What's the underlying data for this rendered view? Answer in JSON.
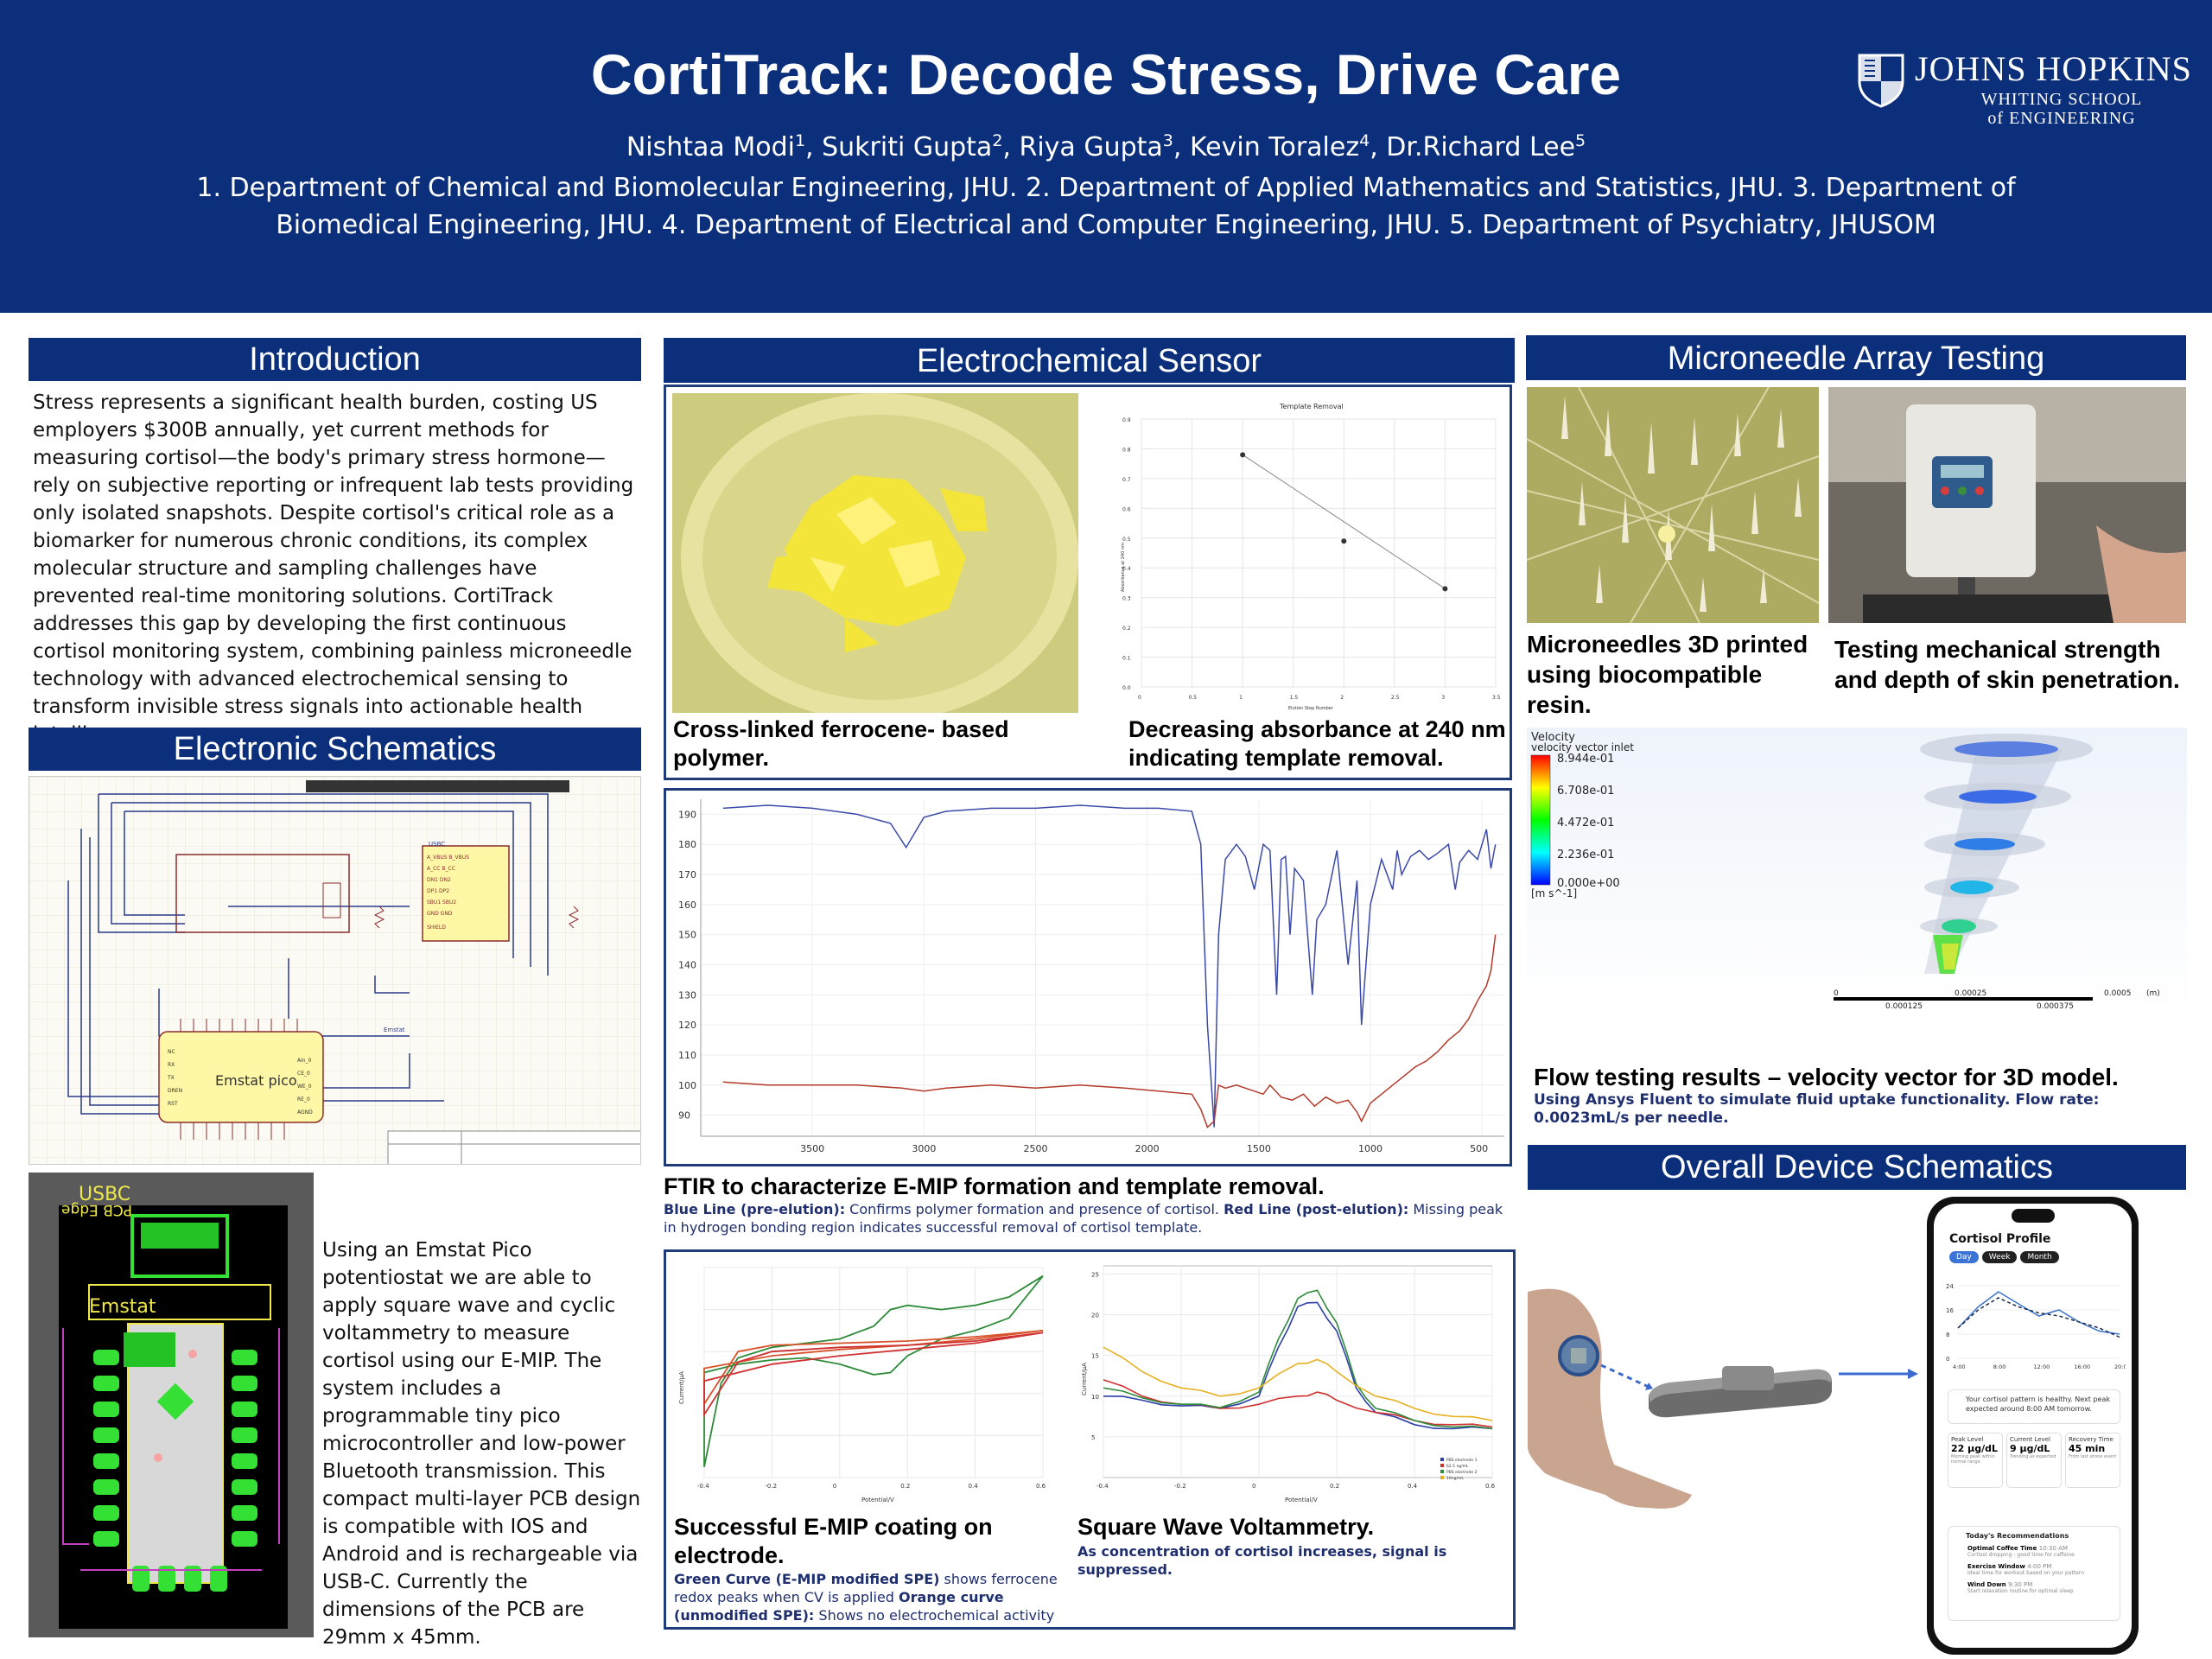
{
  "header": {
    "title": "CortiTrack: Decode Stress, Drive Care",
    "authors": [
      {
        "name": "Nishtaa Modi",
        "sup": "1"
      },
      {
        "name": "Sukriti Gupta",
        "sup": "2"
      },
      {
        "name": "Riya Gupta",
        "sup": "3"
      },
      {
        "name": "Kevin Toralez",
        "sup": "4"
      },
      {
        "name": "Dr.Richard Lee",
        "sup": "5"
      }
    ],
    "affiliations": "1. Department of Chemical and Biomolecular Engineering, JHU. 2. Department of Applied Mathematics and Statistics, JHU. 3. Department of Biomedical Engineering, JHU. 4. Department of Electrical and Computer Engineering, JHU. 5. Department of Psychiatry, JHUSOM",
    "logo": {
      "line1": "JOHNS HOPKINS",
      "line2": "WHITING SCHOOL",
      "line3": "of ENGINEERING"
    }
  },
  "introduction": {
    "heading": "Introduction",
    "text": "Stress represents a significant health burden, costing US employers $300B annually, yet current methods for measuring cortisol—the body's primary stress hormone—rely on subjective reporting or infrequent lab tests providing only isolated snapshots. Despite cortisol's critical role as a biomarker for numerous chronic conditions, its complex molecular structure and sampling challenges have prevented real-time monitoring solutions. CortiTrack addresses this gap by developing the first continuous cortisol monitoring system, combining painless microneedle technology with advanced electrochemical sensing to transform invisible stress signals into actionable health intelligence."
  },
  "schematics": {
    "heading": "Electronic Schematics",
    "usbc_label": "USBC",
    "board_label": "Emstat",
    "pico_label": "Emstat pico",
    "pcb_silk": "USBC",
    "pcb_edge": "PCB Edge",
    "pcb_emstat": "Emstat",
    "text": "Using an Emstat Pico potentiostat we are able to apply square wave and cyclic voltammetry to measure cortisol using our E-MIP. The system includes a programmable tiny pico microcontroller and low-power Bluetooth transmission. This compact multi-layer PCB design is compatible with IOS and Android and is rechargeable via USB-C. Currently the dimensions of the PCB are 29mm x 45mm."
  },
  "sensor": {
    "heading": "Electrochemical Sensor",
    "photo_caption": "Cross-linked ferrocene- based polymer.",
    "abs_caption": "Decreasing absorbance at 240 nm indicating template removal.",
    "abs_title": "Template Removal",
    "ftir_caption": "FTIR to characterize E-MIP formation and template removal.",
    "ftir_note_b1": "Blue Line (pre-elution):",
    "ftir_note_t1": " Confirms polymer formation and presence of cortisol. ",
    "ftir_note_b2": "Red Line (post-elution):",
    "ftir_note_t2": " Missing peak in hydrogen bonding region indicates successful removal of cortisol template.",
    "cv_caption": "Successful E-MIP coating on electrode.",
    "cv_note_b1": "Green Curve (E-MIP modified SPE)",
    "cv_note_t1": " shows ferrocene redox peaks when CV is applied ",
    "cv_note_b2": "Orange curve (unmodified SPE):",
    "cv_note_t2": " Shows no electrochemical activity",
    "swv_caption": "Square Wave Voltammetry.",
    "swv_note": "As concentration of cortisol increases, signal is suppressed.",
    "cv_xlabel": "Potential/V",
    "cv_ylabel": "Current/μA",
    "swv_xlabel": "Potential/V",
    "swv_ylabel": "Current/μA",
    "swv_legend": [
      "PBS electrode 1",
      "62.5 ng/mL",
      "PBS electrode 2",
      "10ng/mL"
    ]
  },
  "microneedle": {
    "heading": "Microneedle Array Testing",
    "cap1": "Microneedles 3D printed using biocompatible resin.",
    "cap2": "Testing mechanical strength and depth of skin penetration.",
    "sim_legend_title": "Velocity",
    "sim_legend_sub": "velocity vector inlet",
    "sim_legend_values": [
      "8.944e-01",
      "6.708e-01",
      "4.472e-01",
      "2.236e-01",
      "0.000e+00"
    ],
    "sim_legend_unit": "[m s^-1]",
    "sim_scale": [
      "0",
      "0.00025",
      "0.0005",
      "(m)",
      "0.000125",
      "0.000375"
    ],
    "flow_caption": "Flow testing results – velocity vector for 3D model.",
    "flow_note": "Using Ansys Fluent to simulate fluid uptake functionality. Flow rate: 0.0023mL/s per needle."
  },
  "device": {
    "heading": "Overall Device Schematics",
    "app_title": "Cortisol Profile",
    "tabs": [
      "Day",
      "Week",
      "Month"
    ],
    "app_yticks": [
      "24",
      "16",
      "8",
      "0"
    ],
    "app_xticks": [
      "4:00",
      "8:00",
      "12:00",
      "16:00",
      "20:00"
    ],
    "app_alert": "Your cortisol pattern is healthy. Next peak expected around 8:00 AM tomorrow.",
    "stats": [
      {
        "label": "Peak Level",
        "value": "22 μg/dL",
        "sub": "Morning peak within normal range"
      },
      {
        "label": "Current Level",
        "value": "9 μg/dL",
        "sub": "Trending as expected"
      },
      {
        "label": "Recovery Time",
        "value": "45 min",
        "sub": "From last stress event"
      }
    ],
    "rec_title": "Today's Recommendations",
    "recs": [
      {
        "title": "Optimal Coffee Time",
        "time": "10:30 AM",
        "desc": "Cortisol dropping - good time for caffeine"
      },
      {
        "title": "Exercise Window",
        "time": "4:00 PM",
        "desc": "Ideal time for workout based on your pattern"
      },
      {
        "title": "Wind Down",
        "time": "9:30 PM",
        "desc": "Start relaxation routine for optimal sleep"
      }
    ]
  },
  "chart_data": [
    {
      "type": "scatter",
      "title": "Template Removal",
      "xlabel": "Elution Step Number",
      "ylabel": "Absorbance at 240 nm",
      "x": [
        1,
        2,
        3
      ],
      "y": [
        0.78,
        0.49,
        0.33
      ],
      "xlim": [
        0,
        3.5
      ],
      "ylim": [
        0,
        0.9
      ],
      "trendline": true
    },
    {
      "type": "line",
      "title": "",
      "xlabel": "",
      "ylabel": "",
      "xticks": [
        3500,
        3000,
        2500,
        2000,
        1500,
        1000,
        500
      ],
      "yticks": [
        90,
        100,
        110,
        120,
        130,
        140,
        150,
        160,
        170,
        180,
        190
      ],
      "xlim": [
        4000,
        400
      ],
      "ylim": [
        83,
        195
      ],
      "series": [
        {
          "color": "#3b4aa8",
          "x": [
            3900,
            3700,
            3500,
            3300,
            3150,
            3080,
            3000,
            2900,
            2700,
            2500,
            2300,
            2100,
            1950,
            1800,
            1760,
            1730,
            1700,
            1680,
            1650,
            1620,
            1600,
            1560,
            1520,
            1480,
            1450,
            1420,
            1400,
            1380,
            1360,
            1340,
            1300,
            1260,
            1240,
            1200,
            1150,
            1100,
            1060,
            1040,
            1000,
            950,
            900,
            880,
            860,
            820,
            780,
            740,
            700,
            650,
            620,
            600,
            560,
            520,
            480,
            460,
            440
          ],
          "y": [
            192,
            193,
            192,
            190,
            187,
            179,
            189,
            191,
            192,
            192,
            193,
            192,
            192,
            191,
            180,
            120,
            86,
            150,
            175,
            178,
            180,
            176,
            165,
            180,
            178,
            130,
            175,
            176,
            150,
            172,
            168,
            130,
            155,
            160,
            178,
            140,
            168,
            120,
            160,
            175,
            165,
            178,
            170,
            176,
            178,
            175,
            177,
            180,
            165,
            174,
            178,
            175,
            185,
            172,
            180
          ]
        },
        {
          "color": "#b3392a",
          "x": [
            3900,
            3700,
            3500,
            3300,
            3100,
            3000,
            2900,
            2700,
            2500,
            2300,
            2100,
            1950,
            1800,
            1760,
            1730,
            1700,
            1680,
            1650,
            1600,
            1560,
            1520,
            1480,
            1450,
            1400,
            1350,
            1300,
            1250,
            1200,
            1150,
            1100,
            1060,
            1040,
            1000,
            950,
            900,
            850,
            800,
            750,
            700,
            650,
            600,
            560,
            520,
            480,
            460,
            440
          ],
          "y": [
            101,
            100,
            100,
            100,
            99,
            98,
            99,
            100,
            99,
            100,
            99,
            98,
            97,
            92,
            86,
            88,
            100,
            99,
            100,
            99,
            98,
            97,
            100,
            96,
            95,
            97,
            93,
            96,
            94,
            95,
            91,
            88,
            94,
            97,
            100,
            103,
            106,
            108,
            111,
            115,
            118,
            122,
            128,
            133,
            138,
            150
          ]
        }
      ]
    },
    {
      "type": "line",
      "title": "",
      "xlabel": "Potential/V",
      "ylabel": "Current/μA",
      "xticks": [
        -0.4,
        -0.2,
        0,
        0.2,
        0.4,
        0.6
      ],
      "xlim": [
        -0.4,
        0.6
      ],
      "ylim": [
        -6,
        4
      ],
      "series": [
        {
          "color": "#2e8b3a",
          "x": [
            -0.4,
            -0.35,
            -0.3,
            -0.2,
            -0.1,
            0.0,
            0.1,
            0.15,
            0.2,
            0.3,
            0.4,
            0.5,
            0.6,
            0.5,
            0.4,
            0.3,
            0.2,
            0.15,
            0.1,
            0.0,
            -0.1,
            -0.2,
            -0.3,
            -0.4
          ],
          "y": [
            -5.5,
            -1.5,
            -0.3,
            0.2,
            0.4,
            0.6,
            1.2,
            2.0,
            2.2,
            2.0,
            2.2,
            2.6,
            3.6,
            1.6,
            1.0,
            0.6,
            -0.2,
            -1.0,
            -1.1,
            -0.6,
            -0.3,
            -0.4,
            -0.6,
            -1.0
          ]
        },
        {
          "color": "#d9532a",
          "x": [
            -0.4,
            -0.3,
            -0.2,
            0.0,
            0.2,
            0.4,
            0.6,
            0.4,
            0.2,
            0.0,
            -0.2,
            -0.4
          ],
          "y": [
            -2.5,
            0.0,
            0.3,
            0.4,
            0.5,
            0.7,
            1.0,
            0.6,
            0.3,
            0.1,
            -0.2,
            -0.8
          ]
        },
        {
          "color": "#cf3030",
          "x": [
            -0.4,
            -0.3,
            -0.2,
            0.0,
            0.2,
            0.4,
            0.6,
            0.4,
            0.2,
            0.0,
            -0.2,
            -0.4
          ],
          "y": [
            -3.0,
            -0.5,
            0.0,
            0.2,
            0.3,
            0.5,
            0.9,
            0.4,
            0.1,
            -0.2,
            -0.6,
            -1.4
          ]
        }
      ]
    },
    {
      "type": "line",
      "title": "",
      "xlabel": "Potential/V",
      "ylabel": "Current/μA",
      "xticks": [
        -0.4,
        -0.2,
        0,
        0.2,
        0.4,
        0.6
      ],
      "yticks": [
        5,
        10,
        15,
        20,
        25
      ],
      "xlim": [
        -0.4,
        0.6
      ],
      "ylim": [
        0,
        26
      ],
      "series": [
        {
          "name": "PBS electrode 1",
          "color": "#2c3fa8",
          "x": [
            -0.4,
            -0.3,
            -0.2,
            -0.1,
            0.0,
            0.05,
            0.1,
            0.15,
            0.2,
            0.25,
            0.3,
            0.4,
            0.5,
            0.6
          ],
          "y": [
            10,
            9.5,
            8.8,
            8.5,
            10,
            16,
            21,
            21.5,
            18,
            11,
            8,
            6.5,
            6,
            6
          ]
        },
        {
          "name": "62.5 ng/mL",
          "color": "#cf3030",
          "x": [
            -0.4,
            -0.3,
            -0.2,
            -0.1,
            0.0,
            0.1,
            0.15,
            0.2,
            0.3,
            0.4,
            0.5,
            0.6
          ],
          "y": [
            12,
            10,
            9,
            8.5,
            9,
            10,
            10.5,
            9.5,
            8,
            7,
            6.5,
            6.2
          ]
        },
        {
          "name": "PBS electrode 2",
          "color": "#2e8b3a",
          "x": [
            -0.4,
            -0.3,
            -0.2,
            -0.1,
            0.0,
            0.05,
            0.1,
            0.15,
            0.2,
            0.25,
            0.3,
            0.4,
            0.5,
            0.6
          ],
          "y": [
            11,
            9.8,
            9,
            8.6,
            10.5,
            17,
            22,
            23,
            19,
            11.5,
            8.5,
            7,
            6.2,
            6
          ]
        },
        {
          "name": "10ng/mL",
          "color": "#e6b021",
          "x": [
            -0.4,
            -0.3,
            -0.2,
            -0.1,
            0.0,
            0.1,
            0.15,
            0.2,
            0.3,
            0.4,
            0.5,
            0.6
          ],
          "y": [
            16,
            13,
            11,
            10,
            11,
            14,
            14.5,
            13,
            10,
            8.5,
            7.5,
            7
          ]
        }
      ]
    },
    {
      "type": "line",
      "title": "",
      "xlabel": "",
      "ylabel": "",
      "x": [
        "4:00",
        "6:00",
        "8:00",
        "10:00",
        "12:00",
        "14:00",
        "16:00",
        "18:00",
        "20:00"
      ],
      "ylim": [
        0,
        24
      ],
      "series": [
        {
          "color": "#3d73c9",
          "y": [
            10,
            17,
            22,
            18,
            14,
            16,
            12,
            9,
            8
          ]
        },
        {
          "color": "#1c2a48",
          "y": [
            10,
            16,
            20,
            17,
            15,
            14,
            12,
            10,
            7
          ]
        }
      ]
    }
  ]
}
